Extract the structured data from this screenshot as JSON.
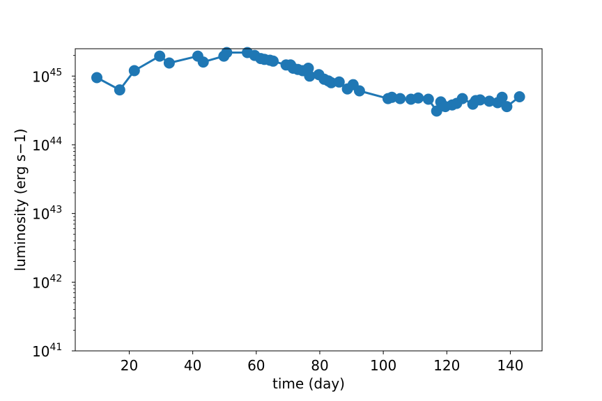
{
  "chart_data": {
    "type": "line",
    "title": "",
    "xlabel": "time (day)",
    "ylabel": "luminosity (erg s−1)",
    "xlim": [
      3,
      150
    ],
    "ylim": [
      1e+41,
      2.5e+45
    ],
    "yscale": "log",
    "grid": false,
    "x_ticks": [
      {
        "value": 20,
        "label": "20"
      },
      {
        "value": 40,
        "label": "40"
      },
      {
        "value": 60,
        "label": "60"
      },
      {
        "value": 80,
        "label": "80"
      },
      {
        "value": 100,
        "label": "100"
      },
      {
        "value": 120,
        "label": "120"
      },
      {
        "value": 140,
        "label": "140"
      }
    ],
    "y_ticks": [
      {
        "value": 1e+41,
        "base": "10",
        "exp": "41"
      },
      {
        "value": 1e+42,
        "base": "10",
        "exp": "42"
      },
      {
        "value": 1e+43,
        "base": "10",
        "exp": "43"
      },
      {
        "value": 1e+44,
        "base": "10",
        "exp": "44"
      },
      {
        "value": 1e+45,
        "base": "10",
        "exp": "45"
      }
    ],
    "color": "#1f77b4",
    "series": [
      {
        "x": [
          9.8,
          17.0,
          21.6,
          29.6,
          32.6,
          41.6,
          43.3,
          49.8,
          50.7,
          57.2,
          59.5,
          61.4,
          62.6,
          64.3,
          65.3,
          69.4,
          70.8,
          71.6,
          73.1,
          74.6,
          75.4,
          76.4,
          76.8,
          79.7,
          81.4,
          82.7,
          83.6,
          86.1,
          88.7,
          90.5,
          92.5,
          101.5,
          102.7,
          105.3,
          108.7,
          111.0,
          114.2,
          116.8,
          118.1,
          119.5,
          121.7,
          123.1,
          124.9,
          128.2,
          129.1,
          130.5,
          133.4,
          136.0,
          137.4,
          138.9,
          142.9
        ],
        "y": [
          9.5e+44,
          6.3e+44,
          1.2e+45,
          1.95e+45,
          1.55e+45,
          1.95e+45,
          1.6e+45,
          1.95e+45,
          2.2e+45,
          2.2e+45,
          2e+45,
          1.8e+45,
          1.75e+45,
          1.7e+45,
          1.65e+45,
          1.45e+45,
          1.45e+45,
          1.3e+45,
          1.25e+45,
          1.2e+45,
          1.2e+45,
          1.3e+45,
          1e+45,
          1.05e+45,
          9e+44,
          8.5e+44,
          8e+44,
          8.2e+44,
          6.5e+44,
          7.5e+44,
          6.1e+44,
          4.7e+44,
          4.9e+44,
          4.7e+44,
          4.6e+44,
          4.8e+44,
          4.6e+44,
          3.1e+44,
          4.2e+44,
          3.6e+44,
          3.8e+44,
          4e+44,
          4.7e+44,
          3.9e+44,
          4.4e+44,
          4.5e+44,
          4.3e+44,
          4.1e+44,
          4.9e+44,
          3.6e+44,
          5e+44
        ]
      }
    ]
  }
}
